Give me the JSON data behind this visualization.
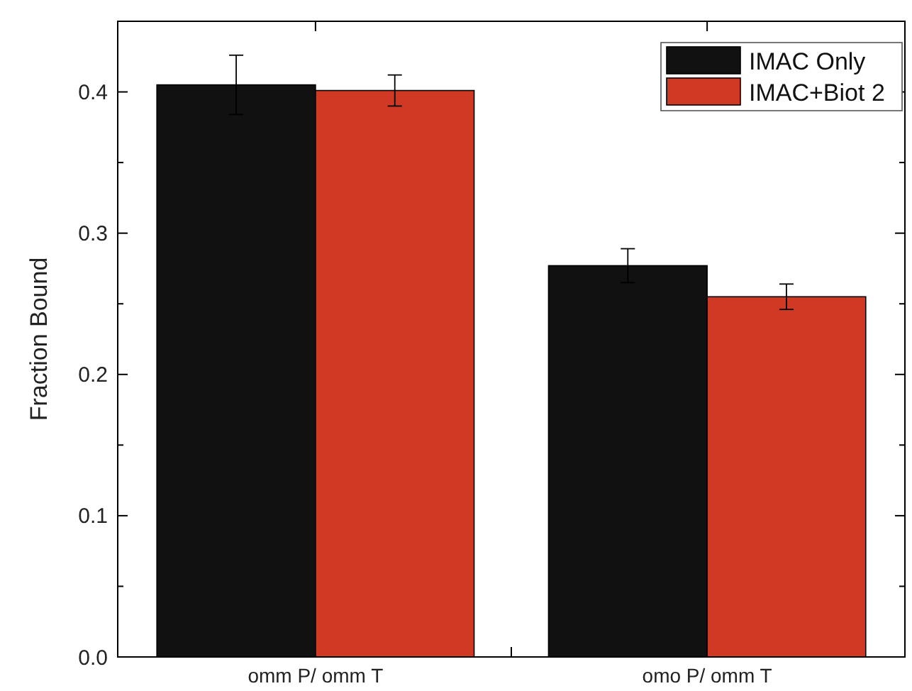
{
  "chart_data": {
    "type": "bar",
    "ylabel": "Fraction Bound",
    "categories": [
      "omm P/ omm T",
      "omo P/ omm T"
    ],
    "series": [
      {
        "name": "IMAC Only",
        "color": "#111111",
        "values": [
          0.405,
          0.277
        ],
        "errors": [
          0.021,
          0.012
        ]
      },
      {
        "name": "IMAC+Biot 2",
        "color": "#d03a24",
        "values": [
          0.401,
          0.255
        ],
        "errors": [
          0.011,
          0.009
        ]
      }
    ],
    "ylim": [
      0,
      0.45
    ],
    "yticks": [
      {
        "value": 0,
        "label": "0.0"
      },
      {
        "value": 0.05,
        "label": null
      },
      0.1,
      {
        "value": 0.15,
        "label": null
      },
      0.2,
      {
        "value": 0.25,
        "label": null
      },
      0.3,
      {
        "value": 0.35,
        "label": null
      },
      0.4
    ],
    "grid": false,
    "legend": "top right"
  }
}
